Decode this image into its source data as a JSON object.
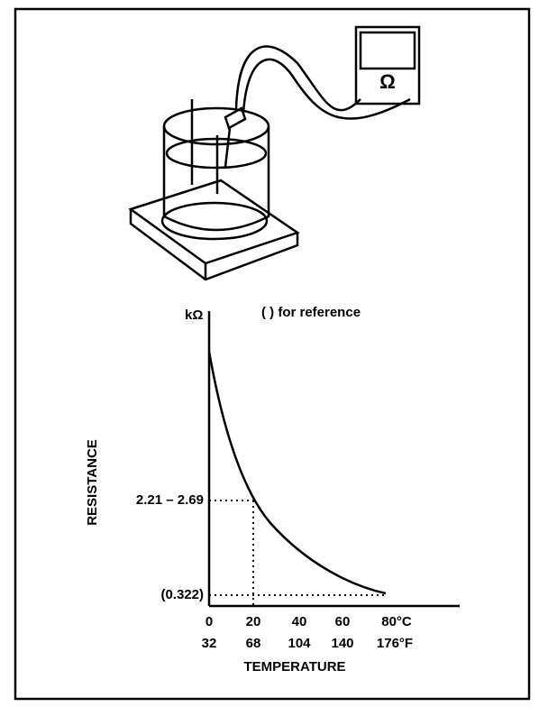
{
  "meter": {
    "symbol": "Ω"
  },
  "graph": {
    "y_unit": "kΩ",
    "note": "(    ) for reference",
    "y_axis_title": "RESISTANCE",
    "x_axis_title": "TEMPERATURE",
    "y_labels": [
      "2.21 – 2.69",
      "(0.322)"
    ],
    "x_labels_celsius": [
      "0",
      "20",
      "40",
      "60",
      "80°C"
    ],
    "x_labels_fahrenheit": [
      "32",
      "68",
      "104",
      "140",
      "176°F"
    ]
  }
}
